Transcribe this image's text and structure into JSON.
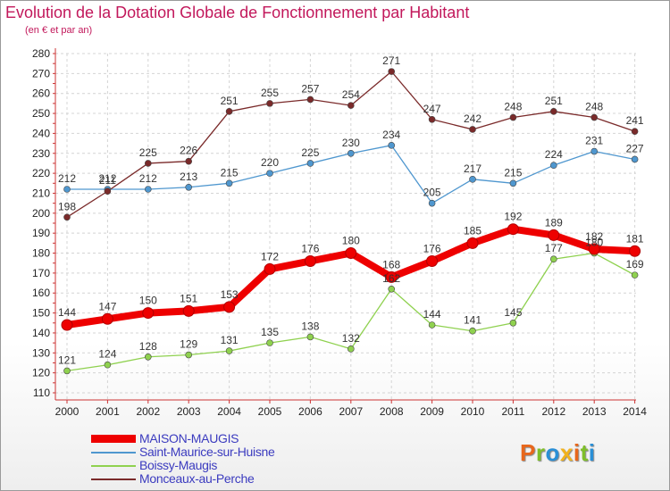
{
  "chart_data": {
    "type": "line",
    "title": "Evolution de la Dotation Globale de Fonctionnement par Habitant",
    "subtitle": "(en € et par an)",
    "categories": [
      "2000",
      "2001",
      "2002",
      "2003",
      "2004",
      "2005",
      "2006",
      "2007",
      "2008",
      "2009",
      "2010",
      "2011",
      "2012",
      "2013",
      "2014"
    ],
    "ylim": [
      110,
      280
    ],
    "yticks": [
      110,
      120,
      130,
      140,
      150,
      160,
      170,
      180,
      190,
      200,
      210,
      220,
      230,
      240,
      250,
      260,
      270,
      280
    ],
    "series": [
      {
        "name": "MAISON-MAUGIS",
        "color": "#ee0000",
        "values": [
          144,
          147,
          150,
          151,
          153,
          172,
          176,
          180,
          168,
          176,
          185,
          192,
          189,
          182,
          181
        ]
      },
      {
        "name": "Saint-Maurice-sur-Huisne",
        "color": "#4f97cf",
        "values": [
          212,
          212,
          212,
          213,
          215,
          220,
          225,
          230,
          234,
          205,
          217,
          215,
          224,
          231,
          227
        ]
      },
      {
        "name": "Boissy-Maugis",
        "color": "#8fd14f",
        "values": [
          121,
          124,
          128,
          129,
          131,
          135,
          138,
          132,
          162,
          144,
          141,
          145,
          177,
          180,
          169
        ]
      },
      {
        "name": "Monceaux-au-Perche",
        "color": "#7a2a2a",
        "values": [
          198,
          211,
          225,
          226,
          251,
          255,
          257,
          254,
          271,
          247,
          242,
          248,
          251,
          248,
          241
        ]
      }
    ]
  },
  "logo": {
    "text": "Proxiti",
    "colors": [
      "#e8671c",
      "#7fbf2a",
      "#2a8fd6",
      "#f2b21c",
      "#e8671c",
      "#7fbf2a",
      "#2a8fd6"
    ]
  }
}
